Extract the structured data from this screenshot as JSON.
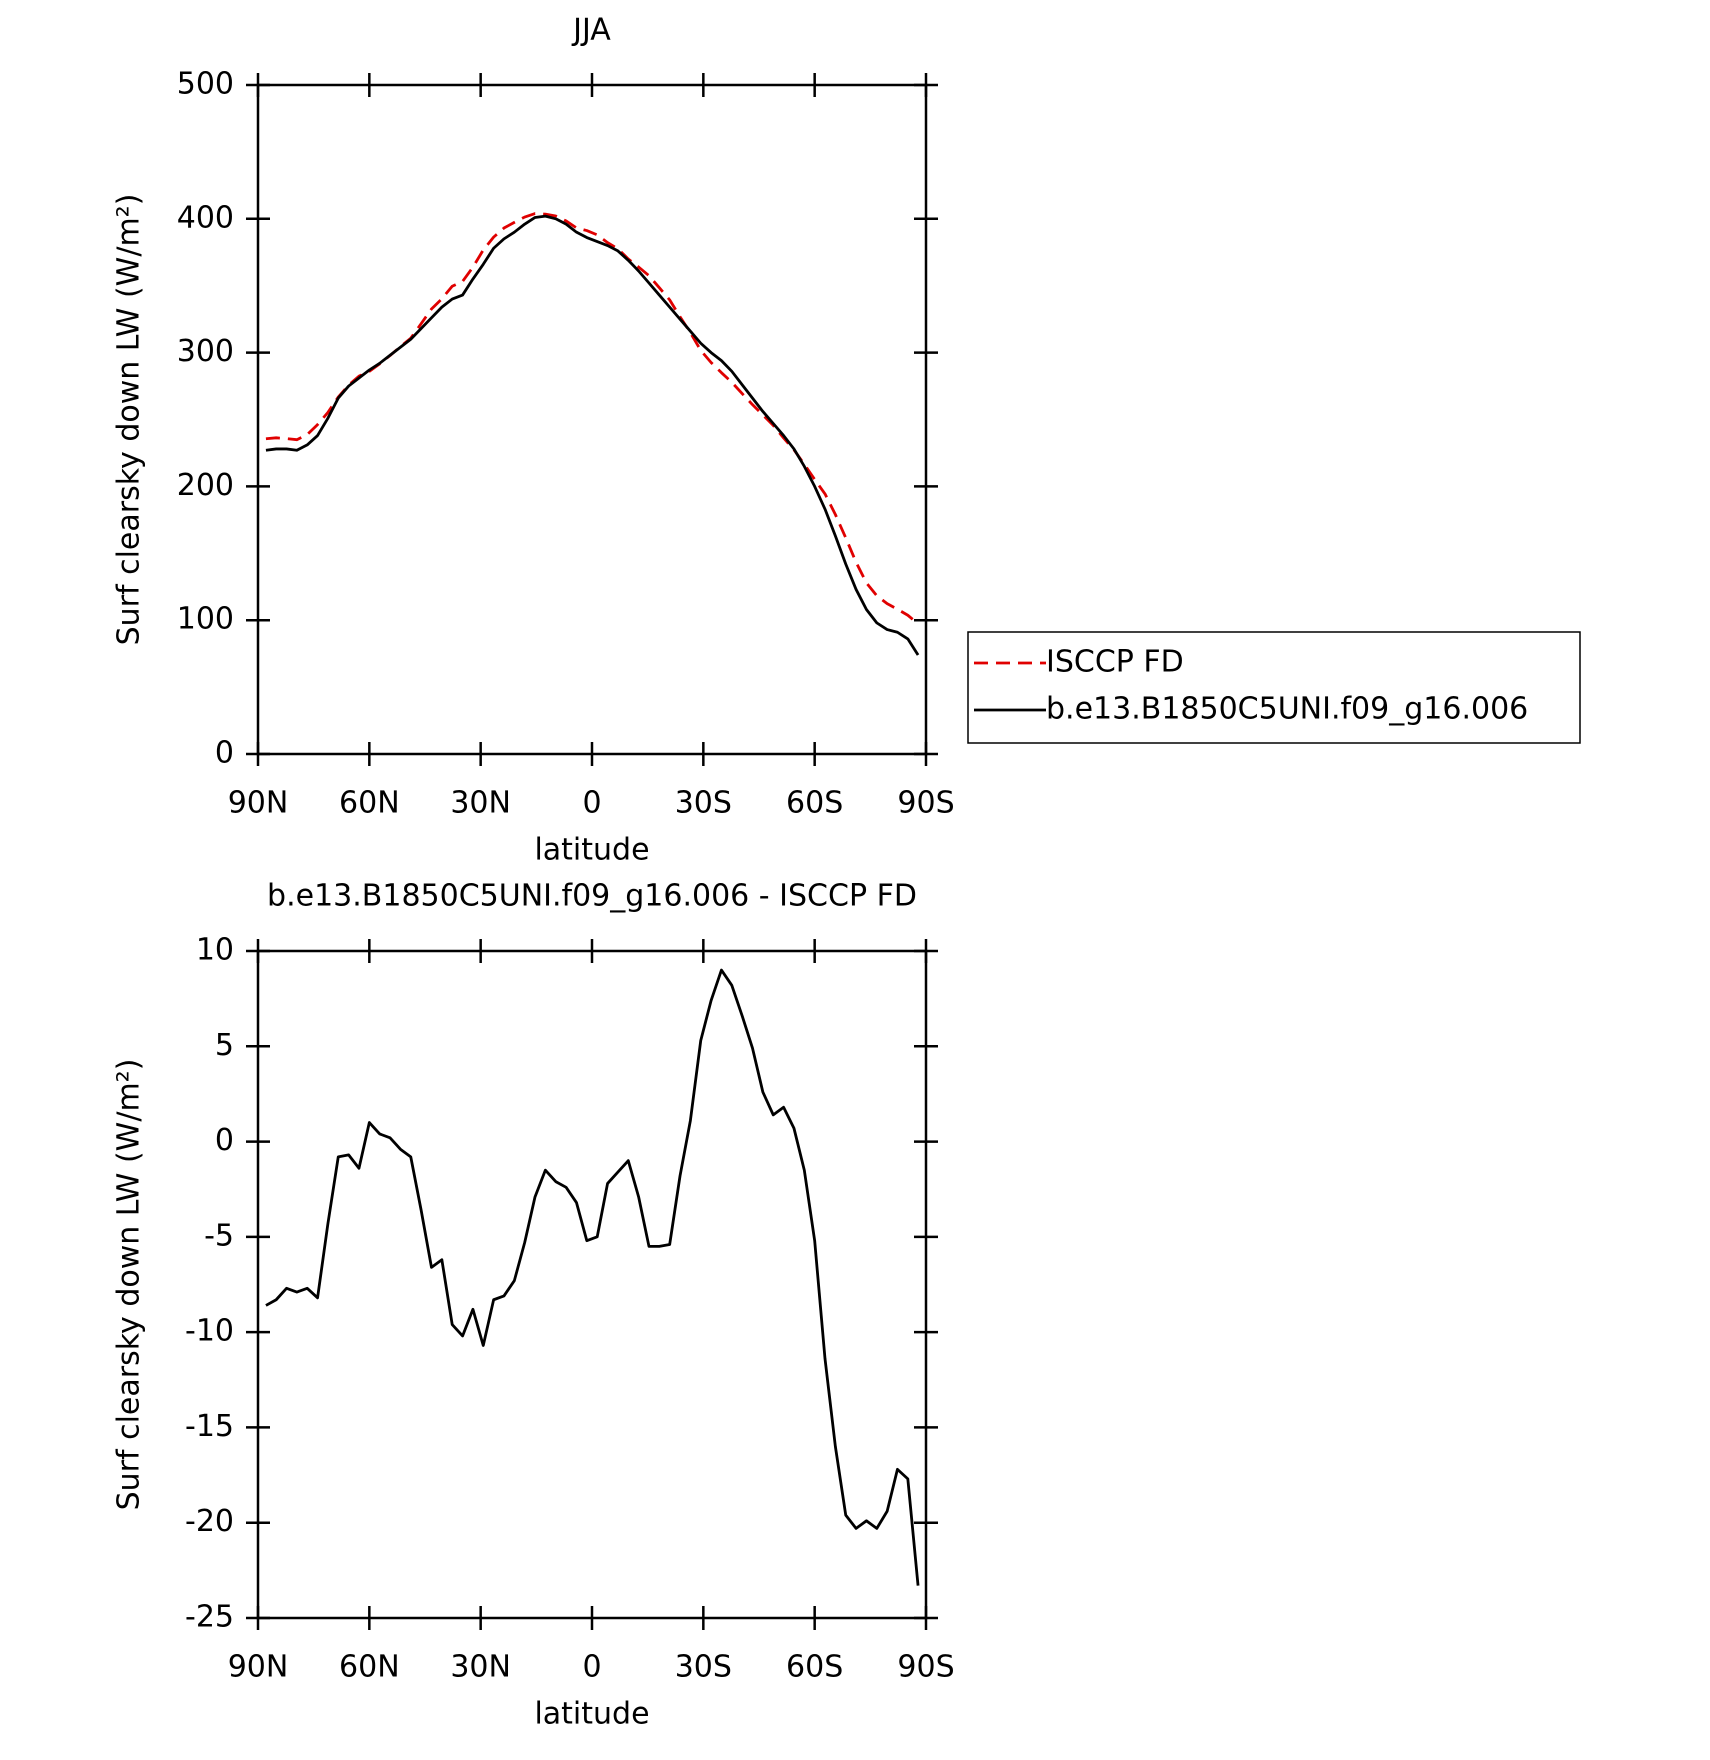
{
  "chart_data": [
    {
      "type": "line",
      "title": "JJA",
      "x_label": "latitude",
      "y_label": "Surf clearsky down LW (W/m²)",
      "x": [
        87.86,
        85.1,
        82.31,
        79.53,
        76.74,
        73.95,
        71.16,
        68.37,
        65.58,
        62.79,
        60.0,
        57.21,
        54.42,
        51.63,
        48.84,
        46.04,
        43.25,
        40.46,
        37.67,
        34.88,
        32.09,
        29.3,
        26.51,
        23.72,
        20.93,
        18.14,
        15.35,
        12.56,
        9.77,
        6.98,
        4.19,
        1.4,
        -1.4,
        -4.19,
        -6.98,
        -9.77,
        -12.56,
        -15.35,
        -18.14,
        -20.93,
        -23.72,
        -26.51,
        -29.3,
        -32.09,
        -34.88,
        -37.67,
        -40.46,
        -43.25,
        -46.04,
        -48.84,
        -51.63,
        -54.42,
        -57.21,
        -60.0,
        -62.79,
        -65.58,
        -68.37,
        -71.16,
        -73.95,
        -76.74,
        -79.53,
        -82.31,
        -85.1,
        -87.86
      ],
      "series": [
        {
          "name": "ISCCP FD",
          "color": "#e00000",
          "dashed": true,
          "values": [
            235.6,
            236.3,
            235.7,
            234.9,
            238.7,
            246.2,
            255.3,
            266.8,
            275.7,
            282.4,
            286.0,
            291.6,
            297.8,
            304.4,
            310.8,
            321.6,
            332.6,
            340.2,
            349.6,
            353.2,
            363.8,
            376.7,
            386.3,
            393.1,
            397.3,
            401.3,
            403.9,
            403.5,
            402.1,
            398.4,
            393.2,
            391.2,
            388.0,
            382.2,
            377.6,
            370.0,
            363.9,
            357.5,
            348.5,
            339.4,
            326.8,
            314.9,
            301.7,
            292.6,
            285.0,
            277.8,
            269.4,
            261.1,
            253.4,
            245.6,
            236.2,
            227.3,
            216.5,
            205.2,
            194.4,
            179.0,
            161.6,
            143.3,
            127.9,
            118.3,
            112.4,
            108.2,
            103.7,
            97.3
          ]
        },
        {
          "name": "b.e13.B1850C5UNI.f09_g16.006",
          "color": "#000000",
          "dashed": false,
          "values": [
            227,
            228,
            228,
            227,
            231,
            238,
            251,
            266,
            275,
            281,
            287,
            292,
            298,
            304,
            310,
            318,
            326,
            334,
            340,
            343,
            355,
            366,
            378,
            385,
            390,
            396,
            401,
            402,
            400,
            396,
            390,
            386,
            383,
            380,
            376,
            369,
            361,
            352,
            343,
            334,
            325,
            316,
            307,
            300,
            294,
            286,
            276,
            266,
            256,
            247,
            238,
            228,
            215,
            200,
            183,
            163,
            142,
            123,
            108,
            98,
            93,
            91,
            86,
            74
          ]
        }
      ],
      "xlim": [
        90,
        -90
      ],
      "xticks": [
        {
          "value": 90,
          "label": "90N"
        },
        {
          "value": 60,
          "label": "60N"
        },
        {
          "value": 30,
          "label": "30N"
        },
        0,
        {
          "value": -30,
          "label": "30S"
        },
        {
          "value": -60,
          "label": "60S"
        },
        {
          "value": -90,
          "label": "90S"
        }
      ],
      "ylim": [
        0,
        500
      ],
      "yticks": [
        0,
        100,
        200,
        300,
        400,
        500
      ],
      "legend": "right"
    },
    {
      "type": "line",
      "title": "b.e13.B1850C5UNI.f09_g16.006 - ISCCP FD",
      "x_label": "latitude",
      "y_label": "Surf clearsky down LW (W/m²)",
      "x": [
        87.86,
        85.1,
        82.31,
        79.53,
        76.74,
        73.95,
        71.16,
        68.37,
        65.58,
        62.79,
        60.0,
        57.21,
        54.42,
        51.63,
        48.84,
        46.04,
        43.25,
        40.46,
        37.67,
        34.88,
        32.09,
        29.3,
        26.51,
        23.72,
        20.93,
        18.14,
        15.35,
        12.56,
        9.77,
        6.98,
        4.19,
        1.4,
        -1.4,
        -4.19,
        -6.98,
        -9.77,
        -12.56,
        -15.35,
        -18.14,
        -20.93,
        -23.72,
        -26.51,
        -29.3,
        -32.09,
        -34.88,
        -37.67,
        -40.46,
        -43.25,
        -46.04,
        -48.84,
        -51.63,
        -54.42,
        -57.21,
        -60.0,
        -62.79,
        -65.58,
        -68.37,
        -71.16,
        -73.95,
        -76.74,
        -79.53,
        -82.31,
        -85.1,
        -87.86
      ],
      "values": [
        -8.6,
        -8.3,
        -7.7,
        -7.9,
        -7.7,
        -8.2,
        -4.3,
        -0.8,
        -0.7,
        -1.4,
        1.0,
        0.4,
        0.2,
        -0.4,
        -0.8,
        -3.6,
        -6.6,
        -6.2,
        -9.6,
        -10.2,
        -8.8,
        -10.7,
        -8.3,
        -8.1,
        -7.3,
        -5.3,
        -2.9,
        -1.5,
        -2.1,
        -2.4,
        -3.2,
        -5.2,
        -5.0,
        -2.2,
        -1.6,
        -1.0,
        -2.9,
        -5.5,
        -5.5,
        -5.4,
        -1.8,
        1.1,
        5.3,
        7.4,
        9.0,
        8.2,
        6.6,
        4.9,
        2.6,
        1.4,
        1.8,
        0.7,
        -1.5,
        -5.2,
        -11.4,
        -16.0,
        -19.6,
        -20.3,
        -19.9,
        -20.3,
        -19.4,
        -17.2,
        -17.7,
        -23.3
      ],
      "color": "#000000",
      "xlim": [
        90,
        -90
      ],
      "xticks": [
        {
          "value": 90,
          "label": "90N"
        },
        {
          "value": 60,
          "label": "60N"
        },
        {
          "value": 30,
          "label": "30N"
        },
        0,
        {
          "value": -30,
          "label": "30S"
        },
        {
          "value": -60,
          "label": "60S"
        },
        {
          "value": -90,
          "label": "90S"
        }
      ],
      "ylim": [
        -25,
        10
      ],
      "yticks": [
        -25,
        -20,
        -15,
        -10,
        -5,
        0,
        5,
        10
      ]
    }
  ]
}
